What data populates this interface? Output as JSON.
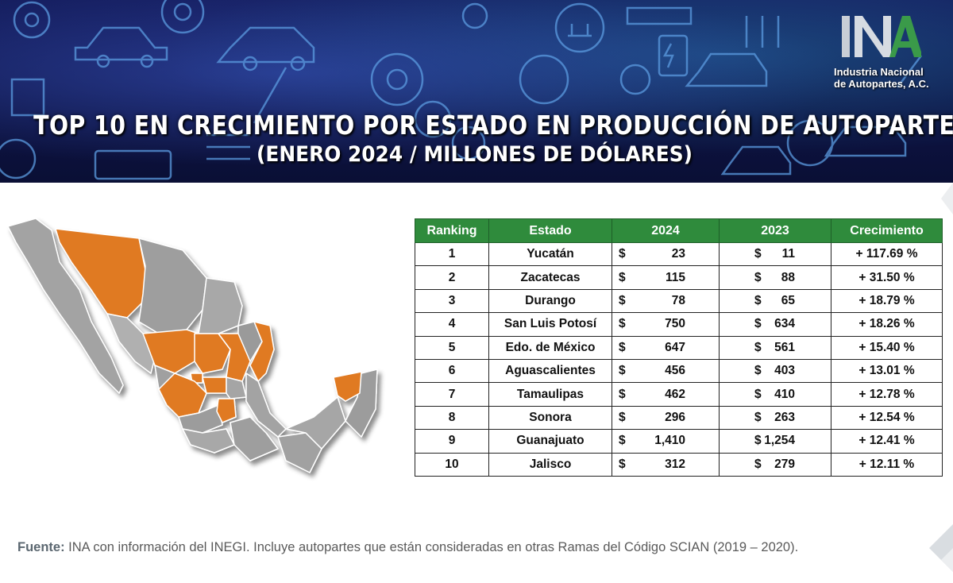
{
  "header": {
    "title_bold": "TOP 10",
    "title_rest": " EN CRECIMIENTO POR ESTADO EN PRODUCCIÓN DE AUTOPARTES",
    "subtitle": "(ENERO 2024 / MILLONES DE DÓLARES)"
  },
  "logo": {
    "line1": "Industria Nacional",
    "line2": "de Autopartes, A.C."
  },
  "table": {
    "headers": [
      "Ranking",
      "Estado",
      "2024",
      "2023",
      "Crecimiento"
    ],
    "rows": [
      {
        "rank": "1",
        "state": "Yucatán",
        "v2024": "23",
        "v2023": "11",
        "growth": "+ 117.69 %"
      },
      {
        "rank": "2",
        "state": "Zacatecas",
        "v2024": "115",
        "v2023": "88",
        "growth": "+   31.50 %"
      },
      {
        "rank": "3",
        "state": "Durango",
        "v2024": "78",
        "v2023": "65",
        "growth": "+   18.79 %"
      },
      {
        "rank": "4",
        "state": "San Luis Potosí",
        "v2024": "750",
        "v2023": "634",
        "growth": "+ 18.26 %"
      },
      {
        "rank": "5",
        "state": "Edo. de México",
        "v2024": "647",
        "v2023": "561",
        "growth": "+ 15.40 %"
      },
      {
        "rank": "6",
        "state": "Aguascalientes",
        "v2024": "456",
        "v2023": "403",
        "growth": "+ 13.01 %"
      },
      {
        "rank": "7",
        "state": "Tamaulipas",
        "v2024": "462",
        "v2023": "410",
        "growth": "+ 12.78 %"
      },
      {
        "rank": "8",
        "state": "Sonora",
        "v2024": "296",
        "v2023": "263",
        "growth": "+ 12.54 %"
      },
      {
        "rank": "9",
        "state": "Guanajuato",
        "v2024": "1,410",
        "v2023": "1,254",
        "growth": "+ 12.41 %"
      },
      {
        "rank": "10",
        "state": "Jalisco",
        "v2024": "312",
        "v2023": "279",
        "growth": "+ 12.11 %"
      }
    ],
    "currency": "$"
  },
  "footer": {
    "label": "Fuente:",
    "text": " INA con información del INEGI. Incluye autopartes que están consideradas en otras Ramas del Código SCIAN (2019 – 2020)."
  },
  "colors": {
    "header_green": "#2f8b3c",
    "highlight_orange": "#e07a22",
    "map_gray": "#9e9e9e",
    "banner_navy": "#0e1446"
  }
}
